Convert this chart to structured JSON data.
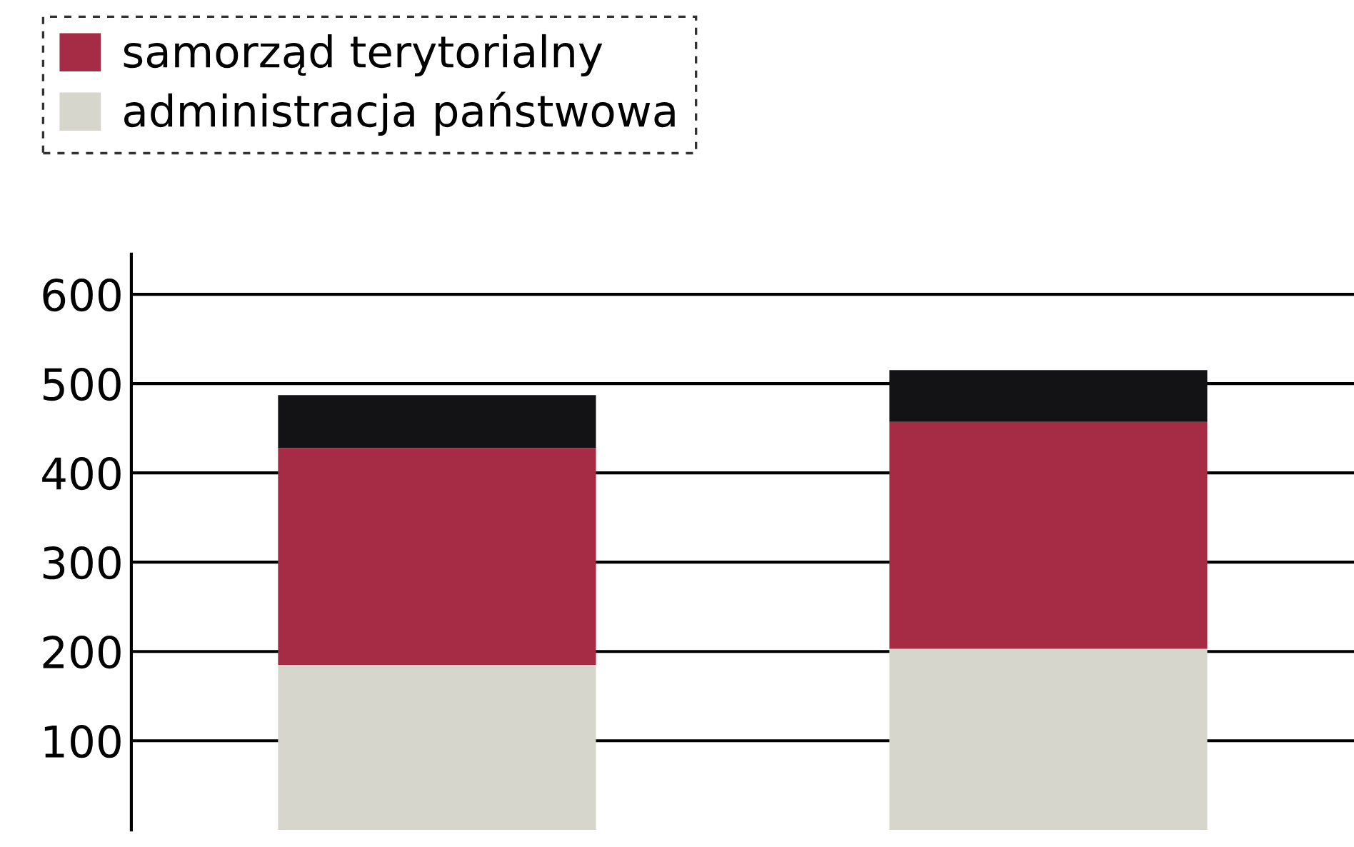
{
  "chart_data": {
    "type": "bar",
    "stacked": true,
    "categories": [
      null,
      null
    ],
    "series": [
      {
        "name": "administracja państwowa",
        "color": "#d6d6cc",
        "values": [
          185,
          203
        ]
      },
      {
        "name": "samorząd terytorialny",
        "color": "#a62b44",
        "values": [
          243,
          254
        ]
      },
      {
        "color": "#131316",
        "values": [
          59,
          58
        ]
      }
    ],
    "ylim": [
      0,
      645
    ],
    "yticks": [
      100,
      200,
      300,
      400,
      500,
      600
    ],
    "grid": "y",
    "legend": "top"
  }
}
